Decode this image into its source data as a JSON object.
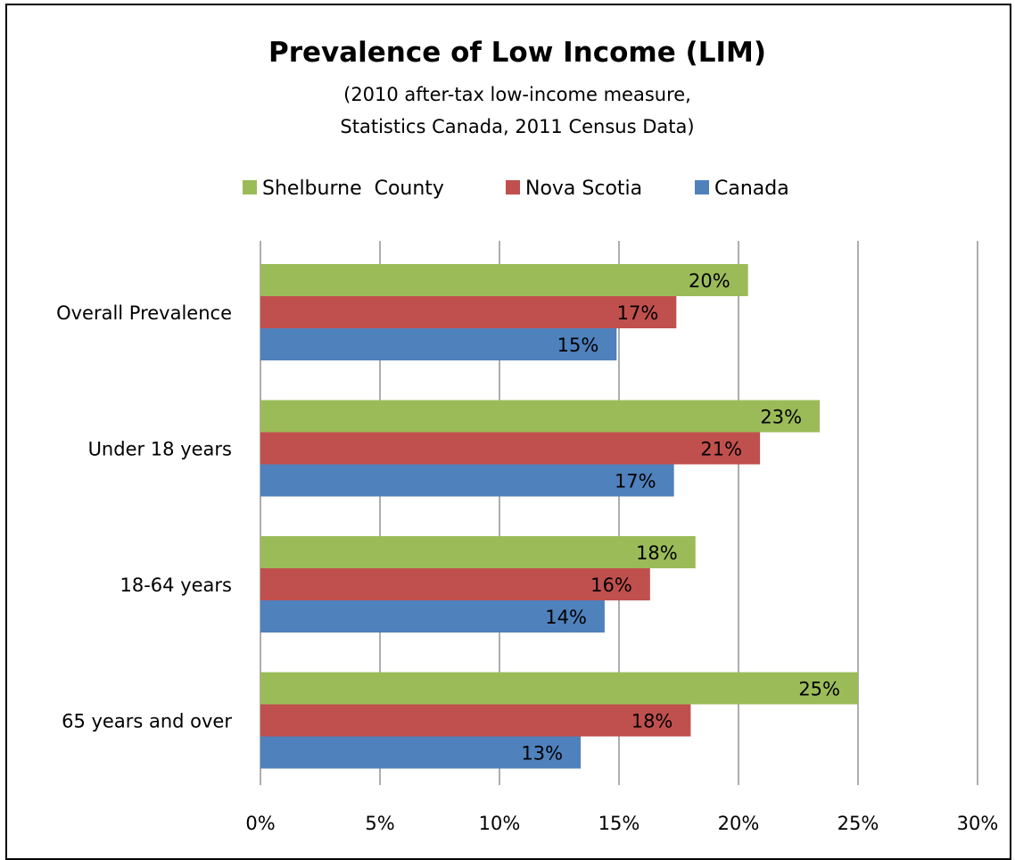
{
  "chart_data": {
    "type": "bar",
    "orientation": "horizontal",
    "title": "Prevalence of Low Income (LIM)",
    "subtitle_lines": [
      "(2010 after-tax low-income measure,",
      "Statistics Canada, 2011 Census Data)"
    ],
    "categories": [
      "Overall Prevalence",
      "Under 18 years",
      "18-64 years",
      "65 years and over"
    ],
    "series": [
      {
        "name": "Shelburne  County",
        "color": "#9BBB59",
        "values": [
          20.4,
          23.4,
          18.2,
          25.0
        ],
        "labels": [
          "20%",
          "23%",
          "18%",
          "25%"
        ]
      },
      {
        "name": "Nova Scotia",
        "color": "#C0504D",
        "values": [
          17.4,
          20.9,
          16.3,
          18.0
        ],
        "labels": [
          "17%",
          "21%",
          "16%",
          "18%"
        ]
      },
      {
        "name": "Canada",
        "color": "#4F81BD",
        "values": [
          14.9,
          17.3,
          14.4,
          13.4
        ],
        "labels": [
          "15%",
          "17%",
          "14%",
          "13%"
        ]
      }
    ],
    "xlim": [
      0,
      30
    ],
    "x_ticks": [
      0,
      5,
      10,
      15,
      20,
      25,
      30
    ],
    "x_tick_labels": [
      "0%",
      "5%",
      "10%",
      "15%",
      "20%",
      "25%",
      "30%"
    ],
    "grid": true,
    "legend_position": "top"
  }
}
